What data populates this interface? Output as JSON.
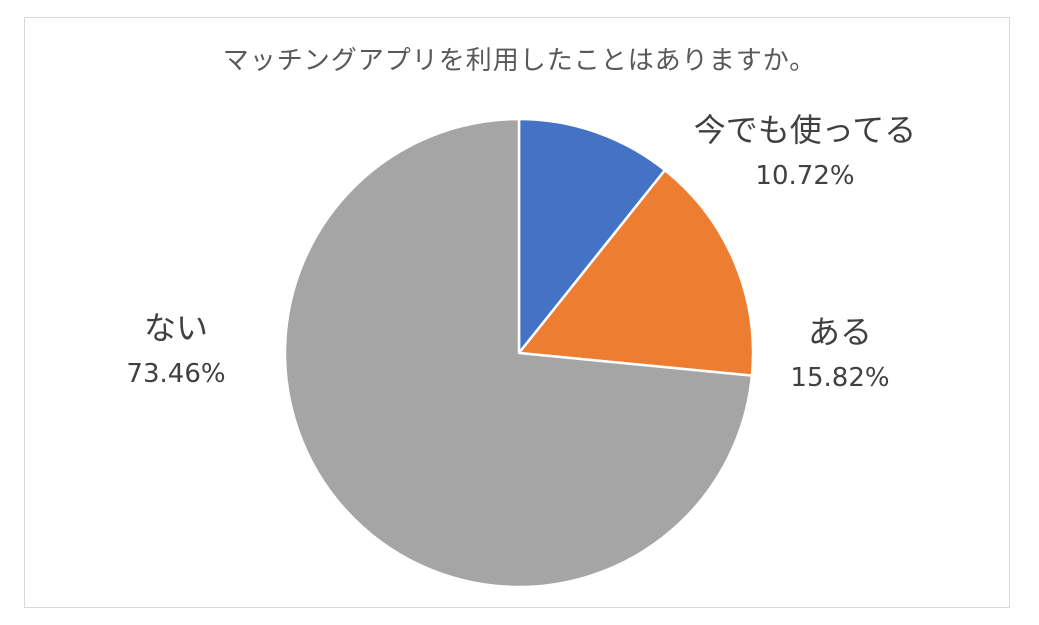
{
  "chart_data": {
    "type": "pie",
    "title": "マッチングアプリを利用したことはありますか。",
    "categories": [
      "今でも使ってる",
      "ある",
      "ない"
    ],
    "values": [
      10.72,
      15.82,
      73.46
    ],
    "value_labels": [
      "10.72%",
      "15.82%",
      "73.46%"
    ],
    "colors": [
      "#4472C4",
      "#ED7D31",
      "#A5A5A5"
    ],
    "start_angle": "12 o'clock",
    "direction": "clockwise",
    "legend": "none",
    "label_placement": "outside"
  }
}
